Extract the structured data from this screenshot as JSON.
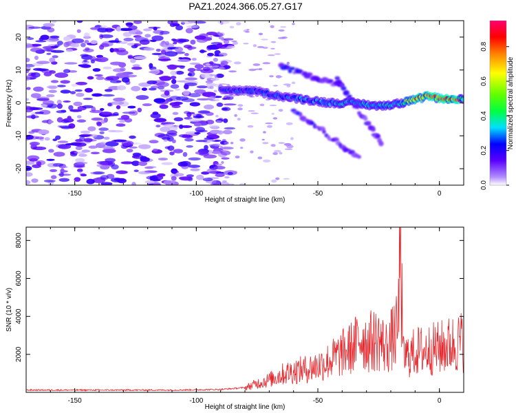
{
  "title": "PAZ1.2024.366.05.27.G17",
  "colors": {
    "snr_line": "#e8252a",
    "axis": "#000000",
    "background": "#ffffff"
  },
  "chart_data": [
    {
      "type": "heatmap",
      "title": "PAZ1.2024.366.05.27.G17",
      "xlabel": "Height of straight line (km)",
      "ylabel": "Frequency (Hz)",
      "xlim": [
        -170,
        10
      ],
      "ylim": [
        -25,
        25
      ],
      "xticks": [
        "-150",
        "-100",
        "-50",
        "0"
      ],
      "yticks": [
        "-20",
        "-10",
        "0",
        "10",
        "20"
      ],
      "grid": false,
      "colorbar": {
        "label": "Normalized spectral amplitude",
        "range": [
          0,
          0.95
        ],
        "ticks": [
          "0.0",
          "0.2",
          "0.4",
          "0.6",
          "0.8"
        ],
        "colormap": "rainbow (purple-blue-cyan-green-yellow-orange-red-magenta)"
      },
      "features": {
        "noise_region_x": [
          -170,
          -90
        ],
        "noise_amplitude": [
          0.02,
          0.2
        ],
        "main_tone_track": [
          {
            "x": -90,
            "y": 4
          },
          {
            "x": -75,
            "y": 3.5
          },
          {
            "x": -65,
            "y": 2
          },
          {
            "x": -55,
            "y": 1
          },
          {
            "x": -45,
            "y": 0
          },
          {
            "x": -35,
            "y": 0
          },
          {
            "x": -25,
            "y": -1
          },
          {
            "x": -15,
            "y": 0
          },
          {
            "x": -5,
            "y": 2
          },
          {
            "x": 5,
            "y": 1
          },
          {
            "x": 10,
            "y": 1
          }
        ],
        "diagonal_branches": [
          {
            "from": {
              "x": -60,
              "y": -2
            },
            "to": {
              "x": -33,
              "y": -17
            }
          },
          {
            "from": {
              "x": -42,
              "y": 7
            },
            "to": {
              "x": -24,
              "y": -12
            }
          },
          {
            "from": {
              "x": -65,
              "y": 11
            },
            "to": {
              "x": -40,
              "y": 5
            }
          }
        ],
        "peak_amplitude_near_x": [
          -8,
          5
        ]
      }
    },
    {
      "type": "line",
      "xlabel": "Height of straight line (km)",
      "ylabel": "SNR (10 * v/v)",
      "xlim": [
        -170,
        10
      ],
      "ylim": [
        0,
        8700
      ],
      "xticks": [
        "-150",
        "-100",
        "-50",
        "0"
      ],
      "yticks": [
        "2000",
        "4000",
        "6000",
        "8000"
      ],
      "grid": false,
      "series": [
        {
          "x": [
            -170,
            -150,
            -130,
            -110,
            -90,
            -80,
            -75,
            -70,
            -65,
            -60,
            -55,
            -50,
            -45,
            -40,
            -35,
            -32,
            -30,
            -25,
            -22,
            -20,
            -17,
            -16,
            -15,
            -12,
            -10,
            -5,
            0,
            5,
            10
          ],
          "y": [
            120,
            120,
            120,
            120,
            150,
            250,
            500,
            700,
            1000,
            1200,
            1300,
            1500,
            1800,
            2200,
            2600,
            3200,
            2800,
            3000,
            2500,
            2900,
            3500,
            8700,
            2000,
            2100,
            2300,
            2400,
            2500,
            2700,
            2900
          ]
        }
      ]
    }
  ]
}
